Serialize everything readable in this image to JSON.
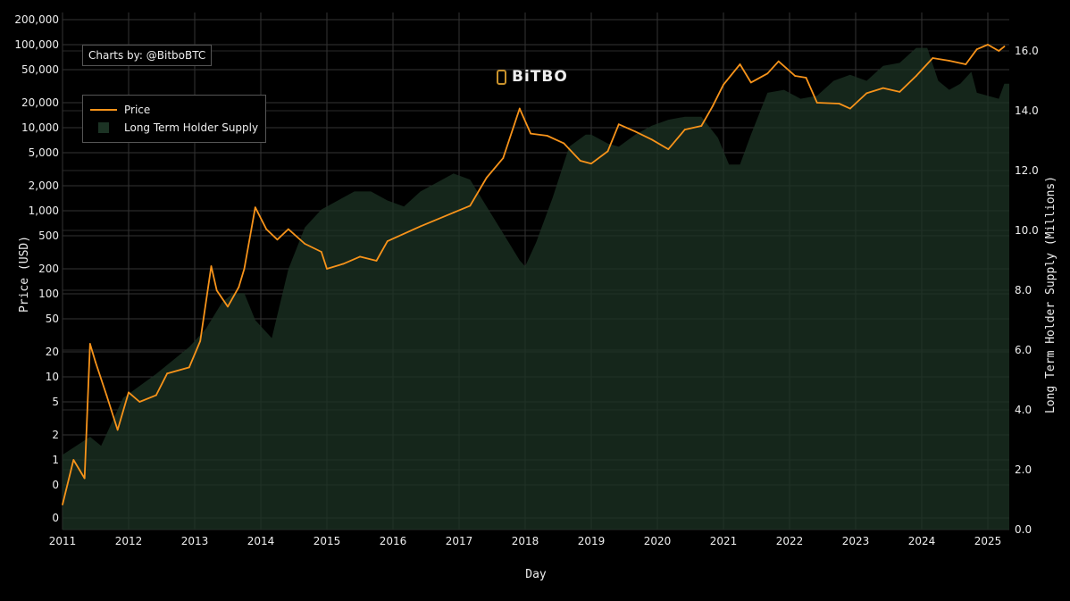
{
  "chart_data": {
    "type": "line",
    "credit": "Charts by: @BitboBTC",
    "logo_text": "BiTBO",
    "xlabel": "Day",
    "ylabel_left": "Price (USD)",
    "ylabel_right": "Long Term Holder Supply (Millions)",
    "x_ticks": [
      "2011",
      "2012",
      "2013",
      "2014",
      "2015",
      "2016",
      "2017",
      "2018",
      "2019",
      "2020",
      "2021",
      "2022",
      "2023",
      "2024",
      "2025"
    ],
    "left_axis": {
      "scale": "log",
      "ticks": [
        200000,
        100000,
        50000,
        20000,
        10000,
        5000,
        2000,
        1000,
        500,
        200,
        100,
        50,
        20,
        10,
        5,
        2,
        1,
        0.5,
        0.2
      ],
      "tick_labels": [
        "200,000",
        "100,000",
        "50,000",
        "20,000",
        "10,000",
        "5,000",
        "2,000",
        "1,000",
        "500",
        "200",
        "100",
        "50",
        "20",
        "10",
        "5",
        "2",
        "1",
        "0",
        "0"
      ]
    },
    "right_axis": {
      "scale": "linear",
      "range": [
        0,
        16.5
      ],
      "tick_labels": [
        "0.0",
        "2.0",
        "4.0",
        "6.0",
        "8.0",
        "10.0",
        "12.0",
        "14.0",
        "16.0"
      ]
    },
    "grid": true,
    "legend_position": "top-left",
    "series": [
      {
        "name": "Price",
        "axis": "left",
        "color": "#f7931a",
        "x": [
          "2011-01",
          "2011-03",
          "2011-05",
          "2011-06",
          "2011-07",
          "2011-09",
          "2011-11",
          "2012-01",
          "2012-03",
          "2012-06",
          "2012-08",
          "2012-12",
          "2013-02",
          "2013-04",
          "2013-05",
          "2013-07",
          "2013-09",
          "2013-10",
          "2013-12",
          "2014-02",
          "2014-04",
          "2014-06",
          "2014-09",
          "2014-12",
          "2015-01",
          "2015-04",
          "2015-07",
          "2015-10",
          "2015-12",
          "2016-06",
          "2016-12",
          "2017-03",
          "2017-06",
          "2017-09",
          "2017-12",
          "2018-02",
          "2018-05",
          "2018-08",
          "2018-11",
          "2019-01",
          "2019-04",
          "2019-06",
          "2019-09",
          "2019-12",
          "2020-03",
          "2020-06",
          "2020-09",
          "2020-11",
          "2021-01",
          "2021-04",
          "2021-06",
          "2021-09",
          "2021-11",
          "2022-02",
          "2022-04",
          "2022-06",
          "2022-10",
          "2022-12",
          "2023-03",
          "2023-06",
          "2023-09",
          "2023-12",
          "2024-03",
          "2024-06",
          "2024-09",
          "2024-11",
          "2025-01",
          "2025-03",
          "2025-04"
        ],
        "y": [
          0.29,
          1.0,
          0.6,
          25,
          15,
          6,
          2.3,
          6.5,
          5,
          6,
          11,
          13,
          27,
          215,
          110,
          70,
          120,
          200,
          1100,
          600,
          450,
          600,
          400,
          320,
          200,
          230,
          280,
          250,
          430,
          650,
          950,
          1150,
          2500,
          4300,
          17000,
          8500,
          8000,
          6500,
          4000,
          3700,
          5200,
          11000,
          9000,
          7200,
          5500,
          9500,
          10500,
          18000,
          33000,
          58000,
          35000,
          45000,
          63000,
          42000,
          40000,
          20000,
          19500,
          17000,
          26000,
          30000,
          27000,
          42000,
          69000,
          64000,
          58000,
          88000,
          100000,
          84000,
          95000
        ]
      },
      {
        "name": "Long Term Holder Supply",
        "axis": "right",
        "type": "area",
        "color": "#1c3324",
        "x": [
          "2011-01",
          "2011-06",
          "2011-08",
          "2011-12",
          "2012-06",
          "2012-12",
          "2013-03",
          "2013-06",
          "2013-08",
          "2013-10",
          "2013-12",
          "2014-03",
          "2014-06",
          "2014-09",
          "2014-12",
          "2015-03",
          "2015-06",
          "2015-09",
          "2015-12",
          "2016-03",
          "2016-06",
          "2016-09",
          "2016-12",
          "2017-03",
          "2017-06",
          "2017-09",
          "2017-12",
          "2018-01",
          "2018-03",
          "2018-06",
          "2018-09",
          "2018-12",
          "2019-01",
          "2019-04",
          "2019-06",
          "2019-09",
          "2019-12",
          "2020-03",
          "2020-06",
          "2020-09",
          "2020-12",
          "2021-02",
          "2021-04",
          "2021-06",
          "2021-09",
          "2021-12",
          "2022-03",
          "2022-06",
          "2022-09",
          "2022-12",
          "2023-03",
          "2023-06",
          "2023-09",
          "2023-12",
          "2024-02",
          "2024-04",
          "2024-06",
          "2024-08",
          "2024-10",
          "2024-11",
          "2025-01",
          "2025-03",
          "2025-04"
        ],
        "y": [
          2.5,
          3.1,
          2.8,
          4.4,
          5.2,
          6.1,
          6.7,
          7.6,
          7.9,
          7.9,
          7.0,
          6.4,
          8.7,
          10.1,
          10.7,
          11.0,
          11.3,
          11.3,
          11.0,
          10.8,
          11.3,
          11.6,
          11.9,
          11.7,
          10.8,
          9.9,
          9.0,
          8.8,
          9.6,
          11.1,
          12.8,
          13.2,
          13.2,
          12.9,
          12.8,
          13.2,
          13.5,
          13.7,
          13.8,
          13.8,
          13.1,
          12.2,
          12.2,
          13.2,
          14.6,
          14.7,
          14.4,
          14.5,
          15.0,
          15.2,
          15.0,
          15.5,
          15.6,
          16.1,
          16.1,
          15.0,
          14.7,
          14.9,
          15.3,
          14.6,
          14.5,
          14.4,
          14.9
        ]
      }
    ]
  }
}
